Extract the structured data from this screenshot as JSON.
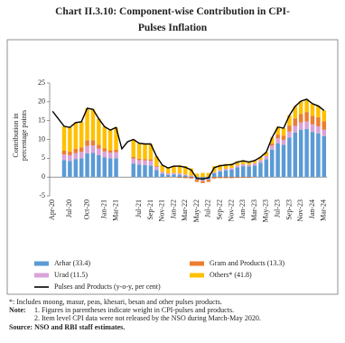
{
  "chart_data": {
    "type": "bar",
    "title": "Chart II.3.10: Component-wise Contribution in CPI-Pulses Inflation",
    "y_label": [
      "Contribution in",
      "percentage points"
    ],
    "categories": [
      "Apr-20",
      null,
      null,
      "Jul-20",
      null,
      null,
      "Oct-20",
      null,
      null,
      "Jan-21",
      null,
      "Mar-21",
      null,
      null,
      null,
      "Jul-21",
      null,
      "Sep-21",
      null,
      "Nov-21",
      null,
      "Jan-22",
      null,
      "Mar-22",
      null,
      "May-22",
      null,
      "Jul-22",
      null,
      "Sep-22",
      null,
      "Nov-22",
      null,
      "Jan-23",
      null,
      "Mar-23",
      null,
      "May-23",
      null,
      "Jul-23",
      null,
      "Sep-23",
      null,
      "Nov-23",
      null,
      "Jan-24",
      null,
      "Mar-24"
    ],
    "stacked": true,
    "series": [
      {
        "name": "Arhar (33.4)",
        "color": "#5b9bd5",
        "values": [
          null,
          null,
          4.5,
          4.3,
          4.8,
          5,
          6.3,
          6.4,
          5.8,
          5.2,
          5,
          5,
          null,
          null,
          3.6,
          3.3,
          3.2,
          3.1,
          1.9,
          0.9,
          0.6,
          0.7,
          0.6,
          0.4,
          0.2,
          -0.6,
          -0.8,
          -0.6,
          1.0,
          1.5,
          1.8,
          2.0,
          2.6,
          2.9,
          2.8,
          3.1,
          3.8,
          4.7,
          7.3,
          9.0,
          8.6,
          10.5,
          11.8,
          12.6,
          12.8,
          12.0,
          11.6,
          10.9
        ]
      },
      {
        "name": "Urad (11.5)",
        "color": "#d9a3d9",
        "values": [
          null,
          null,
          1.5,
          1.5,
          1.6,
          1.7,
          2,
          2,
          1.8,
          1.6,
          1.5,
          1.6,
          null,
          null,
          1.3,
          1.2,
          1.2,
          1.2,
          0.8,
          0.5,
          0.4,
          0.4,
          0.4,
          0.3,
          0.2,
          -0.1,
          -0.2,
          -0.1,
          0.3,
          0.4,
          0.4,
          0.4,
          0.5,
          0.5,
          0.5,
          0.6,
          0.7,
          0.9,
          1.1,
          1.3,
          1.3,
          1.6,
          1.8,
          1.9,
          2.0,
          2.0,
          1.9,
          1.7
        ]
      },
      {
        "name": "Gram and Products (13.3)",
        "color": "#ed7d31",
        "values": [
          null,
          null,
          1,
          1,
          1.1,
          1.2,
          1.5,
          1.4,
          1,
          0.8,
          0.6,
          0.7,
          null,
          null,
          0.5,
          0.4,
          0.4,
          0.4,
          0.2,
          0,
          -0.1,
          -0.1,
          -0.2,
          -0.3,
          -0.4,
          -0.6,
          -0.6,
          -0.6,
          -0.4,
          -0.3,
          -0.3,
          -0.3,
          -0.2,
          -0.2,
          -0.2,
          -0.1,
          0,
          0.1,
          0.5,
          1.0,
          1.1,
          1.6,
          2.0,
          2.3,
          2.5,
          2.3,
          2.4,
          2.2
        ]
      },
      {
        "name": "Others* (41.8)",
        "color": "#ffc000",
        "values": [
          null,
          null,
          6.5,
          6.4,
          7.0,
          6.8,
          8.5,
          8.2,
          6.9,
          5.8,
          5.4,
          5.9,
          null,
          null,
          4.6,
          4.1,
          4.0,
          4.1,
          2.6,
          1.8,
          1.5,
          1.9,
          2.1,
          2.2,
          1.9,
          0.9,
          1.1,
          1.1,
          1.6,
          1.4,
          1.3,
          1.2,
          1.1,
          1.1,
          0.9,
          0.8,
          0.8,
          0.9,
          1.6,
          2.0,
          2.0,
          2.7,
          3.2,
          3.4,
          3.4,
          3.2,
          3.0,
          2.9
        ]
      },
      {
        "name": "Pulses and Products (y-o-y, per cent)",
        "type": "line",
        "color": "#000000",
        "values": [
          17.5,
          15.5,
          13.5,
          13.2,
          14.5,
          14.7,
          18.3,
          18.0,
          15.5,
          13.4,
          12.5,
          13.2,
          7.5,
          9.4,
          10.0,
          9.0,
          8.8,
          8.8,
          5.5,
          3.2,
          2.4,
          2.9,
          2.9,
          2.6,
          1.9,
          -0.4,
          -0.5,
          -0.2,
          2.5,
          3.0,
          3.2,
          3.3,
          4.0,
          4.3,
          4.0,
          4.4,
          5.3,
          6.6,
          10.5,
          13.3,
          13.0,
          16.4,
          18.8,
          20.2,
          20.7,
          19.5,
          18.9,
          17.7
        ]
      }
    ],
    "ylim": [
      -5,
      25
    ],
    "yticks": [
      -5,
      0,
      5,
      10,
      15,
      20,
      25
    ],
    "footnote": "*: Includes moong, masur, peas, khesari, besan and other pulses products.",
    "notes": {
      "label": "Note:",
      "items": [
        "1. Figures in parentheses indicate weight in CPI-pulses and products.",
        "2. Item level CPI data were not released by the NSO during March-May 2020."
      ]
    },
    "source": "Source: NSO and RBI staff estimates."
  }
}
